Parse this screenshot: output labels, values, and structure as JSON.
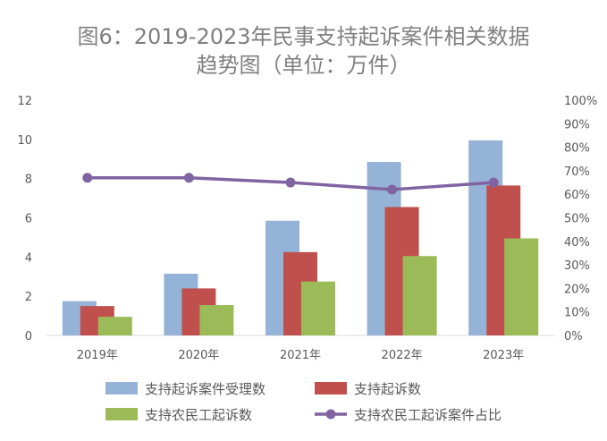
{
  "chart_data": {
    "type": "bar",
    "title_line1": "图6：2019-2023年民事支持起诉案件相关数据",
    "title_line2": "趋势图（单位：万件）",
    "categories": [
      "2019年",
      "2020年",
      "2021年",
      "2022年",
      "2023年"
    ],
    "ylim": [
      0,
      12
    ],
    "y_ticks": [
      "0",
      "2",
      "4",
      "6",
      "8",
      "10",
      "12"
    ],
    "y2lim": [
      0,
      100
    ],
    "y2_ticks": [
      "0%",
      "10%",
      "20%",
      "30%",
      "40%",
      "50%",
      "60%",
      "70%",
      "80%",
      "90%",
      "100%"
    ],
    "grid": false,
    "legend_position": "bottom",
    "series": [
      {
        "name": "支持起诉案件受理数",
        "type": "bar",
        "axis": "left",
        "color": "#95b3d7",
        "values": [
          1.75,
          3.15,
          5.85,
          8.85,
          9.95
        ]
      },
      {
        "name": "支持起诉数",
        "type": "bar",
        "axis": "left",
        "color": "#c0504d",
        "values": [
          1.5,
          2.4,
          4.25,
          6.55,
          7.65
        ]
      },
      {
        "name": "支持农民工起诉数",
        "type": "bar",
        "axis": "left",
        "color": "#9bbb59",
        "values": [
          0.95,
          1.55,
          2.75,
          4.05,
          4.95
        ]
      },
      {
        "name": "支持农民工起诉案件占比",
        "type": "line",
        "axis": "right",
        "color": "#8064a2",
        "values": [
          67,
          67,
          65,
          62,
          65
        ]
      }
    ]
  }
}
